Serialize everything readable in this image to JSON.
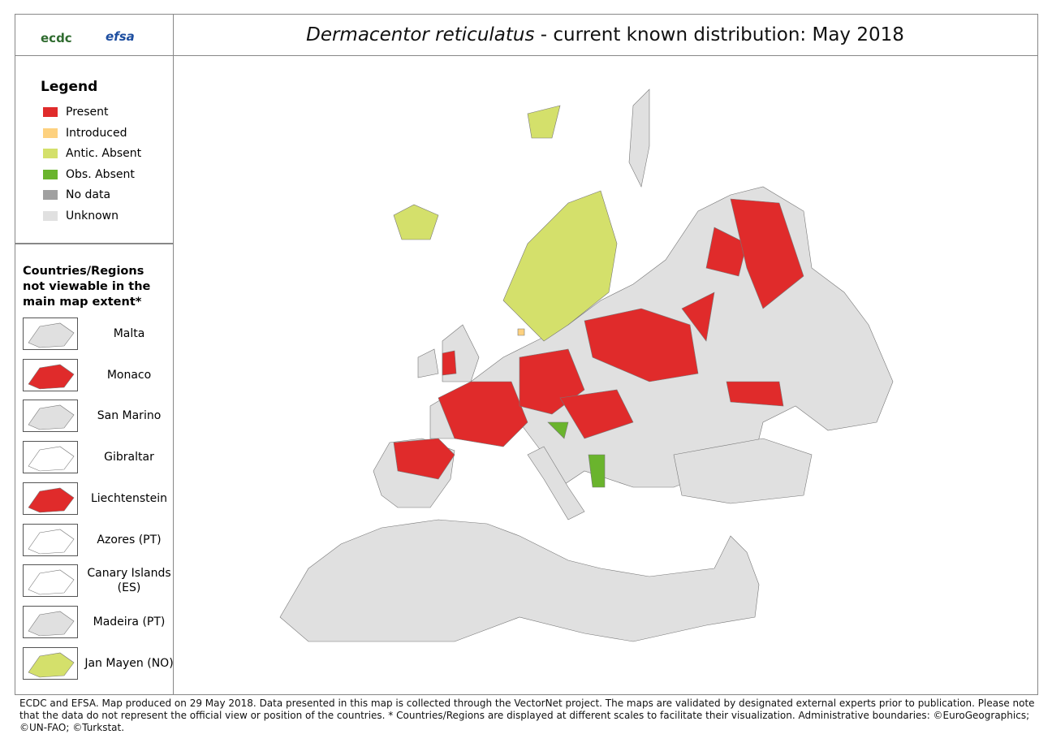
{
  "header": {
    "logos": [
      "ecdc",
      "efsa"
    ],
    "title_species": "Dermacentor reticulatus",
    "title_rest": " - current known distribution: May 2018"
  },
  "legend": {
    "title": "Legend",
    "items": [
      {
        "label": "Present",
        "color": "#e02b2b"
      },
      {
        "label": "Introduced",
        "color": "#fdd17f"
      },
      {
        "label": "Antic. Absent",
        "color": "#d4e06b"
      },
      {
        "label": "Obs. Absent",
        "color": "#6ab42d"
      },
      {
        "label": "No data",
        "color": "#a0a0a0"
      },
      {
        "label": "Unknown",
        "color": "#e0e0e0"
      }
    ]
  },
  "insets": {
    "title": "Countries/Regions not viewable in the main map extent*",
    "items": [
      "Malta",
      "Monaco",
      "San Marino",
      "Gibraltar",
      "Liechtenstein",
      "Azores (PT)",
      "Canary Islands (ES)",
      "Madeira (PT)",
      "Jan Mayen (NO)"
    ]
  },
  "footer": "ECDC and EFSA. Map produced on 29 May 2018. Data presented in this map is collected through the VectorNet project. The maps are validated by designated external experts prior to publication. Please note that the data do not represent the official view or position of the countries. * Countries/Regions are displayed at different scales to facilitate their visualization. Administrative boundaries: ©EuroGeographics; ©UN-FAO; ©Turkstat."
}
